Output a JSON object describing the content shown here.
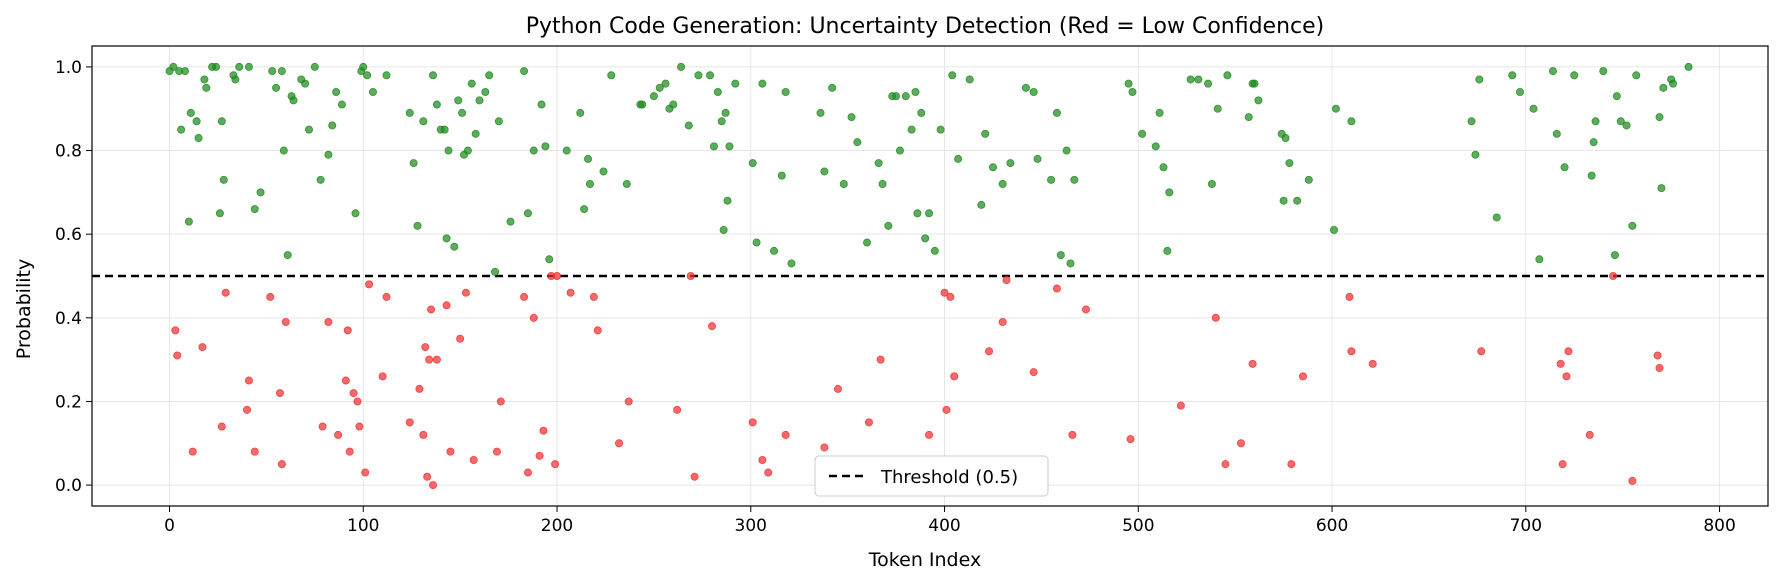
{
  "chart_data": {
    "type": "scatter",
    "title": "Python Code Generation: Uncertainty Detection (Red = Low Confidence)",
    "xlabel": "Token Index",
    "ylabel": "Probability",
    "xlim": [
      -40,
      825
    ],
    "ylim": [
      -0.05,
      1.05
    ],
    "xticks": [
      0,
      100,
      200,
      300,
      400,
      500,
      600,
      700,
      800
    ],
    "yticks": [
      0.0,
      0.2,
      0.4,
      0.6,
      0.8,
      1.0
    ],
    "xtick_labels": [
      "0",
      "100",
      "200",
      "300",
      "400",
      "500",
      "600",
      "700",
      "800"
    ],
    "ytick_labels": [
      "0.0",
      "0.2",
      "0.4",
      "0.6",
      "0.8",
      "1.0"
    ],
    "grid": true,
    "legend_position": "bottom-center",
    "threshold": {
      "value": 0.5,
      "label": "Threshold (0.5)",
      "color": "#000000",
      "style": "dashed"
    },
    "colors": {
      "high_confidence": "#1f8a1f",
      "low_confidence": "#f03030"
    },
    "series": [
      {
        "color": "#1f8a1f",
        "points": [
          [
            0,
            0.99
          ],
          [
            2,
            1.0
          ],
          [
            5,
            0.99
          ],
          [
            6,
            0.85
          ],
          [
            8,
            0.99
          ],
          [
            10,
            0.63
          ],
          [
            11,
            0.89
          ],
          [
            14,
            0.87
          ],
          [
            15,
            0.83
          ],
          [
            18,
            0.97
          ],
          [
            19,
            0.95
          ],
          [
            22,
            1.0
          ],
          [
            24,
            1.0
          ],
          [
            26,
            0.65
          ],
          [
            27,
            0.87
          ],
          [
            28,
            0.73
          ],
          [
            33,
            0.98
          ],
          [
            34,
            0.97
          ],
          [
            36,
            1.0
          ],
          [
            41,
            1.0
          ],
          [
            44,
            0.66
          ],
          [
            47,
            0.7
          ],
          [
            53,
            0.99
          ],
          [
            55,
            0.95
          ],
          [
            58,
            0.99
          ],
          [
            59,
            0.8
          ],
          [
            61,
            0.55
          ],
          [
            63,
            0.93
          ],
          [
            64,
            0.92
          ],
          [
            68,
            0.97
          ],
          [
            70,
            0.96
          ],
          [
            72,
            0.85
          ],
          [
            75,
            1.0
          ],
          [
            78,
            0.73
          ],
          [
            82,
            0.79
          ],
          [
            84,
            0.86
          ],
          [
            86,
            0.94
          ],
          [
            89,
            0.91
          ],
          [
            96,
            0.65
          ],
          [
            99,
            0.99
          ],
          [
            100,
            1.0
          ],
          [
            102,
            0.98
          ],
          [
            105,
            0.94
          ],
          [
            112,
            0.98
          ],
          [
            124,
            0.89
          ],
          [
            126,
            0.77
          ],
          [
            128,
            0.62
          ],
          [
            131,
            0.87
          ],
          [
            136,
            0.98
          ],
          [
            138,
            0.91
          ],
          [
            140,
            0.85
          ],
          [
            142,
            0.85
          ],
          [
            143,
            0.59
          ],
          [
            144,
            0.8
          ],
          [
            147,
            0.57
          ],
          [
            149,
            0.92
          ],
          [
            151,
            0.89
          ],
          [
            152,
            0.79
          ],
          [
            154,
            0.8
          ],
          [
            156,
            0.96
          ],
          [
            158,
            0.84
          ],
          [
            160,
            0.92
          ],
          [
            163,
            0.94
          ],
          [
            165,
            0.98
          ],
          [
            168,
            0.51
          ],
          [
            170,
            0.87
          ],
          [
            176,
            0.63
          ],
          [
            183,
            0.99
          ],
          [
            185,
            0.65
          ],
          [
            188,
            0.8
          ],
          [
            192,
            0.91
          ],
          [
            194,
            0.81
          ],
          [
            196,
            0.54
          ],
          [
            205,
            0.8
          ],
          [
            212,
            0.89
          ],
          [
            214,
            0.66
          ],
          [
            216,
            0.78
          ],
          [
            217,
            0.72
          ],
          [
            224,
            0.75
          ],
          [
            228,
            0.98
          ],
          [
            236,
            0.72
          ],
          [
            243,
            0.91
          ],
          [
            244,
            0.91
          ],
          [
            250,
            0.93
          ],
          [
            253,
            0.95
          ],
          [
            256,
            0.96
          ],
          [
            258,
            0.9
          ],
          [
            260,
            0.91
          ],
          [
            264,
            1.0
          ],
          [
            268,
            0.86
          ],
          [
            273,
            0.98
          ],
          [
            279,
            0.98
          ],
          [
            281,
            0.81
          ],
          [
            283,
            0.94
          ],
          [
            285,
            0.87
          ],
          [
            286,
            0.61
          ],
          [
            287,
            0.89
          ],
          [
            288,
            0.68
          ],
          [
            289,
            0.81
          ],
          [
            292,
            0.96
          ],
          [
            301,
            0.77
          ],
          [
            303,
            0.58
          ],
          [
            306,
            0.96
          ],
          [
            312,
            0.56
          ],
          [
            316,
            0.74
          ],
          [
            318,
            0.94
          ],
          [
            321,
            0.53
          ],
          [
            336,
            0.89
          ],
          [
            338,
            0.75
          ],
          [
            342,
            0.95
          ],
          [
            348,
            0.72
          ],
          [
            352,
            0.88
          ],
          [
            355,
            0.82
          ],
          [
            360,
            0.58
          ],
          [
            366,
            0.77
          ],
          [
            368,
            0.72
          ],
          [
            371,
            0.62
          ],
          [
            373,
            0.93
          ],
          [
            375,
            0.93
          ],
          [
            377,
            0.8
          ],
          [
            380,
            0.93
          ],
          [
            383,
            0.85
          ],
          [
            385,
            0.94
          ],
          [
            386,
            0.65
          ],
          [
            388,
            0.89
          ],
          [
            390,
            0.59
          ],
          [
            392,
            0.65
          ],
          [
            395,
            0.56
          ],
          [
            398,
            0.85
          ],
          [
            404,
            0.98
          ],
          [
            407,
            0.78
          ],
          [
            413,
            0.97
          ],
          [
            419,
            0.67
          ],
          [
            421,
            0.84
          ],
          [
            425,
            0.76
          ],
          [
            430,
            0.72
          ],
          [
            434,
            0.77
          ],
          [
            442,
            0.95
          ],
          [
            446,
            0.94
          ],
          [
            448,
            0.78
          ],
          [
            455,
            0.73
          ],
          [
            458,
            0.89
          ],
          [
            460,
            0.55
          ],
          [
            463,
            0.8
          ],
          [
            465,
            0.53
          ],
          [
            467,
            0.73
          ],
          [
            495,
            0.96
          ],
          [
            497,
            0.94
          ],
          [
            502,
            0.84
          ],
          [
            509,
            0.81
          ],
          [
            511,
            0.89
          ],
          [
            513,
            0.76
          ],
          [
            515,
            0.56
          ],
          [
            516,
            0.7
          ],
          [
            527,
            0.97
          ],
          [
            531,
            0.97
          ],
          [
            536,
            0.96
          ],
          [
            538,
            0.72
          ],
          [
            541,
            0.9
          ],
          [
            546,
            0.98
          ],
          [
            557,
            0.88
          ],
          [
            559,
            0.96
          ],
          [
            560,
            0.96
          ],
          [
            562,
            0.92
          ],
          [
            574,
            0.84
          ],
          [
            575,
            0.68
          ],
          [
            576,
            0.83
          ],
          [
            578,
            0.77
          ],
          [
            582,
            0.68
          ],
          [
            588,
            0.73
          ],
          [
            601,
            0.61
          ],
          [
            602,
            0.9
          ],
          [
            610,
            0.87
          ],
          [
            672,
            0.87
          ],
          [
            674,
            0.79
          ],
          [
            676,
            0.97
          ],
          [
            685,
            0.64
          ],
          [
            693,
            0.98
          ],
          [
            697,
            0.94
          ],
          [
            704,
            0.9
          ],
          [
            707,
            0.54
          ],
          [
            714,
            0.99
          ],
          [
            716,
            0.84
          ],
          [
            720,
            0.76
          ],
          [
            725,
            0.98
          ],
          [
            734,
            0.74
          ],
          [
            735,
            0.82
          ],
          [
            736,
            0.87
          ],
          [
            740,
            0.99
          ],
          [
            746,
            0.55
          ],
          [
            747,
            0.93
          ],
          [
            749,
            0.87
          ],
          [
            752,
            0.86
          ],
          [
            755,
            0.62
          ],
          [
            757,
            0.98
          ],
          [
            769,
            0.88
          ],
          [
            770,
            0.71
          ],
          [
            771,
            0.95
          ],
          [
            775,
            0.97
          ],
          [
            776,
            0.96
          ],
          [
            784,
            1.0
          ]
        ]
      },
      {
        "color": "#f03030",
        "points": [
          [
            3,
            0.37
          ],
          [
            4,
            0.31
          ],
          [
            12,
            0.08
          ],
          [
            17,
            0.33
          ],
          [
            27,
            0.14
          ],
          [
            29,
            0.46
          ],
          [
            40,
            0.18
          ],
          [
            41,
            0.25
          ],
          [
            44,
            0.08
          ],
          [
            52,
            0.45
          ],
          [
            57,
            0.22
          ],
          [
            58,
            0.05
          ],
          [
            60,
            0.39
          ],
          [
            79,
            0.14
          ],
          [
            82,
            0.39
          ],
          [
            87,
            0.12
          ],
          [
            91,
            0.25
          ],
          [
            92,
            0.37
          ],
          [
            93,
            0.08
          ],
          [
            95,
            0.22
          ],
          [
            97,
            0.2
          ],
          [
            98,
            0.14
          ],
          [
            101,
            0.03
          ],
          [
            103,
            0.48
          ],
          [
            110,
            0.26
          ],
          [
            112,
            0.45
          ],
          [
            124,
            0.15
          ],
          [
            129,
            0.23
          ],
          [
            131,
            0.12
          ],
          [
            132,
            0.33
          ],
          [
            133,
            0.02
          ],
          [
            134,
            0.3
          ],
          [
            135,
            0.42
          ],
          [
            136,
            0.0
          ],
          [
            138,
            0.3
          ],
          [
            143,
            0.43
          ],
          [
            145,
            0.08
          ],
          [
            150,
            0.35
          ],
          [
            153,
            0.46
          ],
          [
            157,
            0.06
          ],
          [
            169,
            0.08
          ],
          [
            171,
            0.2
          ],
          [
            183,
            0.45
          ],
          [
            185,
            0.03
          ],
          [
            188,
            0.4
          ],
          [
            191,
            0.07
          ],
          [
            193,
            0.13
          ],
          [
            197,
            0.5
          ],
          [
            199,
            0.05
          ],
          [
            200,
            0.5
          ],
          [
            207,
            0.46
          ],
          [
            219,
            0.45
          ],
          [
            221,
            0.37
          ],
          [
            232,
            0.1
          ],
          [
            237,
            0.2
          ],
          [
            262,
            0.18
          ],
          [
            269,
            0.5
          ],
          [
            271,
            0.02
          ],
          [
            280,
            0.38
          ],
          [
            301,
            0.15
          ],
          [
            306,
            0.06
          ],
          [
            309,
            0.03
          ],
          [
            318,
            0.12
          ],
          [
            338,
            0.09
          ],
          [
            345,
            0.23
          ],
          [
            361,
            0.15
          ],
          [
            367,
            0.3
          ],
          [
            392,
            0.12
          ],
          [
            400,
            0.46
          ],
          [
            401,
            0.18
          ],
          [
            403,
            0.45
          ],
          [
            405,
            0.26
          ],
          [
            423,
            0.32
          ],
          [
            430,
            0.39
          ],
          [
            432,
            0.49
          ],
          [
            446,
            0.27
          ],
          [
            458,
            0.47
          ],
          [
            466,
            0.12
          ],
          [
            473,
            0.42
          ],
          [
            496,
            0.11
          ],
          [
            522,
            0.19
          ],
          [
            540,
            0.4
          ],
          [
            545,
            0.05
          ],
          [
            553,
            0.1
          ],
          [
            559,
            0.29
          ],
          [
            579,
            0.05
          ],
          [
            585,
            0.26
          ],
          [
            609,
            0.45
          ],
          [
            610,
            0.32
          ],
          [
            621,
            0.29
          ],
          [
            677,
            0.32
          ],
          [
            718,
            0.29
          ],
          [
            719,
            0.05
          ],
          [
            721,
            0.26
          ],
          [
            722,
            0.32
          ],
          [
            733,
            0.12
          ],
          [
            745,
            0.5
          ],
          [
            755,
            0.01
          ],
          [
            768,
            0.31
          ],
          [
            769,
            0.28
          ]
        ]
      }
    ]
  }
}
